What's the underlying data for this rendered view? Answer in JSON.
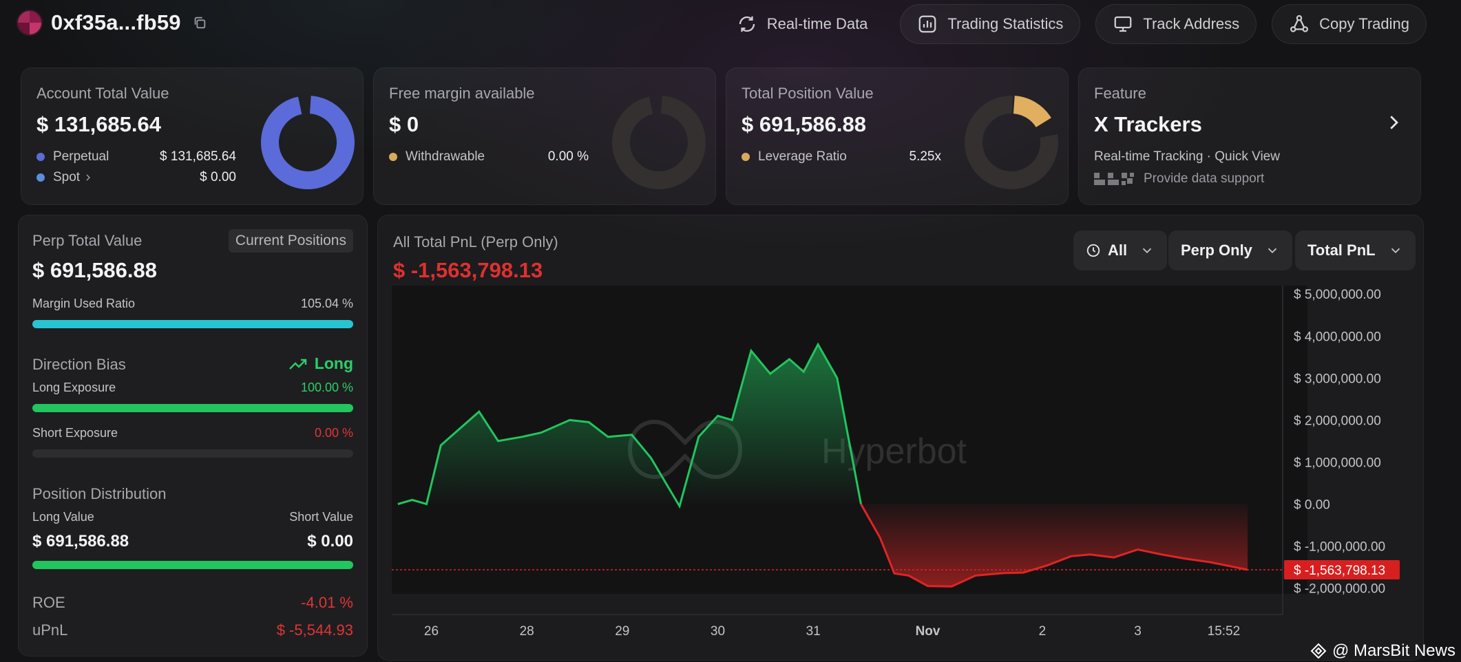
{
  "header": {
    "address": "0xf35a...fb59",
    "nav": [
      {
        "label": "Real-time Data",
        "icon": "refresh-icon"
      },
      {
        "label": "Trading Statistics",
        "icon": "stats-icon"
      },
      {
        "label": "Track Address",
        "icon": "monitor-icon"
      },
      {
        "label": "Copy Trading",
        "icon": "network-icon"
      }
    ]
  },
  "cards": {
    "account": {
      "label": "Account Total Value",
      "value": "$ 131,685.64",
      "rows": [
        {
          "label": "Perpetual",
          "value": "$ 131,685.64",
          "color": "#5b6bd9"
        },
        {
          "label": "Spot",
          "value": "$ 0.00",
          "color": "#5b8fd9"
        }
      ],
      "donut_fraction": 1.0,
      "donut_color": "#5b6bd9"
    },
    "margin": {
      "label": "Free margin available",
      "value": "$ 0",
      "row": {
        "label": "Withdrawable",
        "value": "0.00 %",
        "color": "#d9a95b"
      },
      "donut_fraction": 0.0
    },
    "position": {
      "label": "Total Position Value",
      "value": "$ 691,586.88",
      "row": {
        "label": "Leverage Ratio",
        "value": "5.25x",
        "color": "#d9a95b"
      },
      "donut_color": "#e0b060"
    },
    "feature": {
      "label": "Feature",
      "title": "X Trackers",
      "subtitle": "Real-time Tracking · Quick View",
      "support": "Provide data support"
    }
  },
  "perp": {
    "title": "Perp Total Value",
    "tag": "Current Positions",
    "value": "$ 691,586.88",
    "margin_label": "Margin Used Ratio",
    "margin_value": "105.04 %",
    "margin_fill": 1.0,
    "direction_label": "Direction Bias",
    "direction_value": "Long",
    "long_label": "Long Exposure",
    "long_value": "100.00 %",
    "long_fill": 1.0,
    "short_label": "Short Exposure",
    "short_value": "0.00 %",
    "short_fill": 0.0,
    "dist_label": "Position Distribution",
    "long_value_label": "Long Value",
    "short_value_label": "Short Value",
    "long_amount": "$ 691,586.88",
    "short_amount": "$ 0.00",
    "dist_fill": 1.0,
    "roe_label": "ROE",
    "roe_value": "-4.01 %",
    "upnl_label": "uPnL",
    "upnl_value": "$ -5,544.93"
  },
  "chart": {
    "title": "All Total PnL (Perp Only)",
    "value": "$ -1,563,798.13",
    "filters": {
      "time": "All",
      "scope": "Perp Only",
      "metric": "Total PnL"
    },
    "watermark": "Hyperbot",
    "current_label": "$ -1,563,798.13"
  },
  "chart_data": {
    "type": "area",
    "title": "All Total PnL (Perp Only)",
    "ylim": [
      -2300000,
      5200000
    ],
    "yticks": [
      5000000,
      4000000,
      3000000,
      2000000,
      1000000,
      0,
      -1000000,
      -2000000
    ],
    "ytick_labels": [
      "$ 5,000,000.00",
      "$ 4,000,000.00",
      "$ 3,000,000.00",
      "$ 2,000,000.00",
      "$ 1,000,000.00",
      "$ 0.00",
      "$ -1,000,000.00",
      "$ -2,000,000.00"
    ],
    "xlim": [
      25.6,
      34.6
    ],
    "xticks": [
      26,
      27,
      28,
      29,
      30,
      31,
      32,
      33,
      34,
      34.95
    ],
    "xtick_labels": [
      "26",
      "28",
      "29",
      "30",
      "31",
      "Nov",
      "2",
      "3",
      "15:52"
    ],
    "xtick_positions": [
      26,
      27,
      28,
      29,
      30,
      31.2,
      32.4,
      33.4,
      34.3
    ],
    "x": [
      25.65,
      25.8,
      25.95,
      26.1,
      26.25,
      26.5,
      26.7,
      26.95,
      27.15,
      27.45,
      27.65,
      27.85,
      28.1,
      28.3,
      28.6,
      28.8,
      29.0,
      29.15,
      29.35,
      29.55,
      29.75,
      29.9,
      30.05,
      30.25,
      30.5,
      30.7,
      30.85,
      31.0,
      31.2,
      31.45,
      31.7,
      32.0,
      32.2,
      32.45,
      32.7,
      32.9,
      33.15,
      33.4,
      33.65,
      33.9,
      34.15,
      34.35,
      34.55
    ],
    "values": [
      0,
      100000,
      0,
      1400000,
      1700000,
      2200000,
      1500000,
      1600000,
      1700000,
      2000000,
      1950000,
      1600000,
      1650000,
      1100000,
      -50000,
      1600000,
      2100000,
      2000000,
      3650000,
      3100000,
      3450000,
      3150000,
      3800000,
      3000000,
      0,
      -800000,
      -1650000,
      -1700000,
      -1950000,
      -1960000,
      -1700000,
      -1640000,
      -1630000,
      -1460000,
      -1240000,
      -1200000,
      -1270000,
      -1080000,
      -1200000,
      -1300000,
      -1380000,
      -1470000,
      -1563798
    ]
  },
  "footer": {
    "watermark": "@ MarsBit News"
  }
}
